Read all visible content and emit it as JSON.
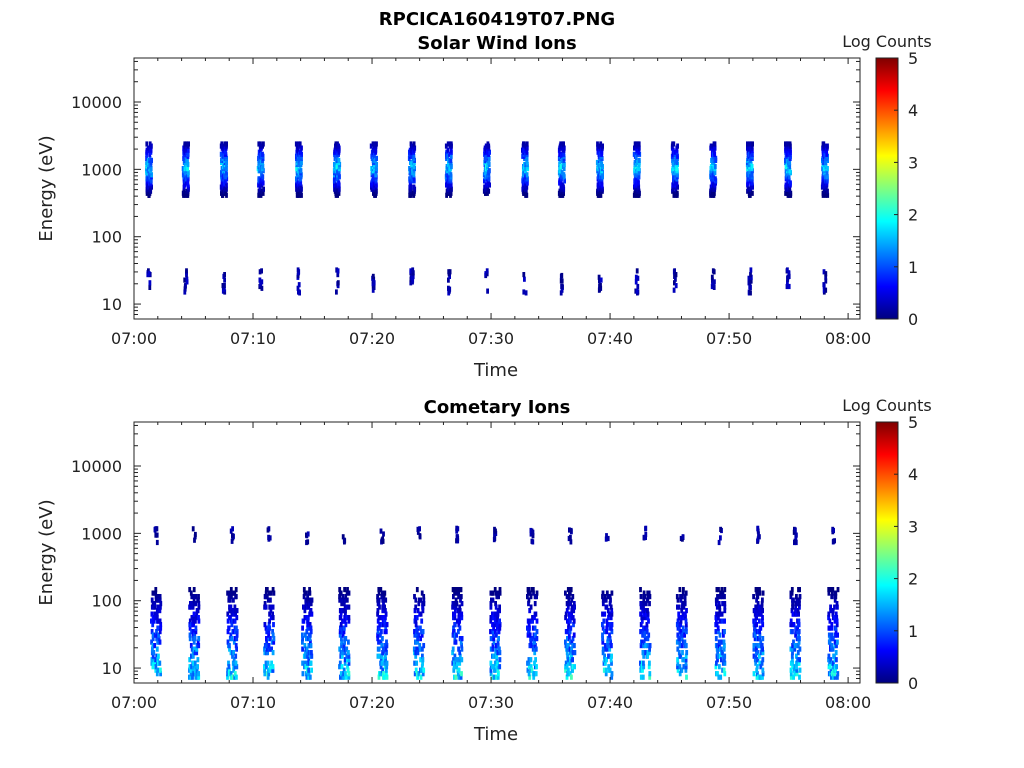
{
  "figure_title": "RPCICA160419T07.PNG",
  "chart_data": [
    {
      "type": "heatmap",
      "title": "Solar Wind Ions",
      "xlabel": "Time",
      "ylabel": "Energy (eV)",
      "x_ticks": [
        "07:00",
        "07:10",
        "07:20",
        "07:30",
        "07:40",
        "07:50",
        "08:00"
      ],
      "xlim": [
        "07:00",
        "08:01"
      ],
      "y_scale": "log",
      "y_ticks": [
        "10",
        "100",
        "1000",
        "10000"
      ],
      "ylim": [
        6,
        45000
      ],
      "colorbar": {
        "label": "Log Counts",
        "ticks": [
          "0",
          "1",
          "2",
          "3",
          "4",
          "5"
        ],
        "range": [
          0,
          5
        ],
        "colormap": "jet"
      },
      "sweep_times_min": [
        1.2,
        4.3,
        7.5,
        10.6,
        13.8,
        17.0,
        20.1,
        23.3,
        26.4,
        29.6,
        32.8,
        35.9,
        39.1,
        42.2,
        45.4,
        48.6,
        51.7,
        54.9,
        58.0
      ],
      "bands": [
        {
          "name": "",
          "energy_range_eV": [
            450,
            2600
          ],
          "peak_log_counts": 1.9
        },
        {
          "name": "",
          "energy_range_eV": [
            16,
            35
          ],
          "peak_log_counts": 0.4
        }
      ]
    },
    {
      "type": "heatmap",
      "title": "Cometary Ions",
      "xlabel": "Time",
      "ylabel": "Energy (eV)",
      "x_ticks": [
        "07:00",
        "07:10",
        "07:20",
        "07:30",
        "07:40",
        "07:50",
        "08:00"
      ],
      "xlim": [
        "07:00",
        "08:01"
      ],
      "y_scale": "log",
      "y_ticks": [
        "10",
        "100",
        "1000",
        "10000"
      ],
      "ylim": [
        6,
        45000
      ],
      "colorbar": {
        "label": "Log Counts",
        "ticks": [
          "0",
          "1",
          "2",
          "3",
          "4",
          "5"
        ],
        "range": [
          0,
          5
        ],
        "colormap": "jet"
      },
      "sweep_times_min": [
        1.8,
        5.0,
        8.2,
        11.3,
        14.5,
        17.6,
        20.8,
        23.9,
        27.1,
        30.3,
        33.4,
        36.6,
        39.7,
        42.9,
        46.0,
        49.2,
        52.4,
        55.5,
        58.7
      ],
      "bands": [
        {
          "name": "",
          "energy_range_eV": [
            8,
            160
          ],
          "peak_log_counts": 2.1
        },
        {
          "name": "",
          "energy_range_eV": [
            800,
            1300
          ],
          "peak_log_counts": 0.3
        }
      ]
    }
  ],
  "colors": {
    "axis": "#222222",
    "background": "#ffffff"
  }
}
